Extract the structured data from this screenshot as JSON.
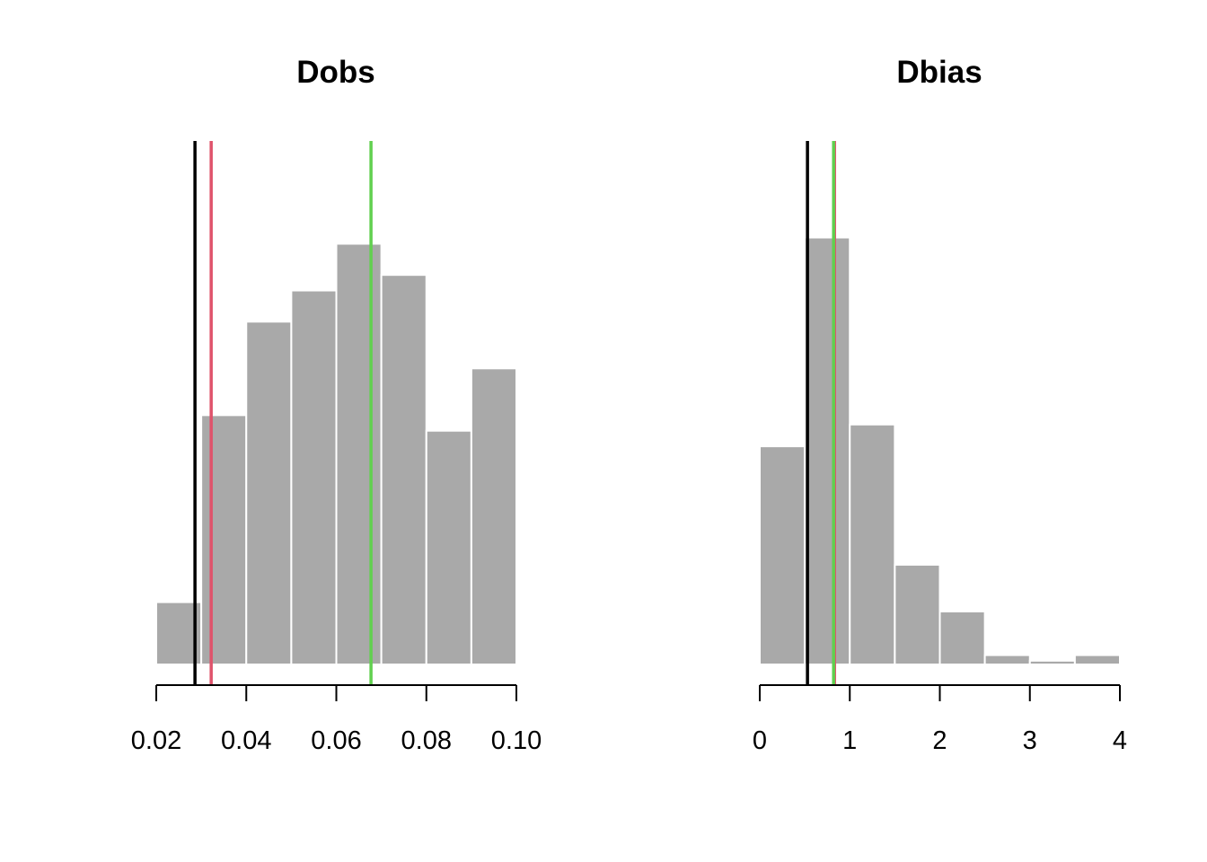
{
  "chart_data": [
    {
      "type": "bar",
      "subtype": "histogram",
      "title": "Dobs",
      "xlabel": "",
      "ylabel": "",
      "xlim": [
        0.02,
        0.1
      ],
      "ylim": [
        0,
        17
      ],
      "bins": [
        {
          "x0": 0.02,
          "x1": 0.03,
          "count": 2
        },
        {
          "x0": 0.03,
          "x1": 0.04,
          "count": 8
        },
        {
          "x0": 0.04,
          "x1": 0.05,
          "count": 11
        },
        {
          "x0": 0.05,
          "x1": 0.06,
          "count": 12
        },
        {
          "x0": 0.06,
          "x1": 0.07,
          "count": 13.5
        },
        {
          "x0": 0.07,
          "x1": 0.08,
          "count": 12.5
        },
        {
          "x0": 0.08,
          "x1": 0.09,
          "count": 7.5
        },
        {
          "x0": 0.09,
          "x1": 0.1,
          "count": 9.5
        }
      ],
      "xticks": [
        {
          "value": 0.02,
          "label": "0.02"
        },
        {
          "value": 0.04,
          "label": "0.04"
        },
        {
          "value": 0.06,
          "label": "0.06"
        },
        {
          "value": 0.08,
          "label": "0.08"
        },
        {
          "value": 0.1,
          "label": "0.10"
        }
      ],
      "vlines": [
        {
          "x": 0.0286,
          "color": "#000000"
        },
        {
          "x": 0.0322,
          "color": "#DF536B"
        },
        {
          "x": 0.0677,
          "color": "#61D04F"
        }
      ],
      "bar_color": "#A9A9A9",
      "grid": false
    },
    {
      "type": "bar",
      "subtype": "histogram",
      "title": "Dbias",
      "xlabel": "",
      "ylabel": "",
      "xlim": [
        0,
        4
      ],
      "ylim": [
        0,
        17
      ],
      "bins": [
        {
          "x0": 0.0,
          "x1": 0.5,
          "count": 7
        },
        {
          "x0": 0.5,
          "x1": 1.0,
          "count": 13.7
        },
        {
          "x0": 1.0,
          "x1": 1.5,
          "count": 7.7
        },
        {
          "x0": 1.5,
          "x1": 2.0,
          "count": 3.2
        },
        {
          "x0": 2.0,
          "x1": 2.5,
          "count": 1.7
        },
        {
          "x0": 2.5,
          "x1": 3.0,
          "count": 0.3
        },
        {
          "x0": 3.0,
          "x1": 3.5,
          "count": 0.12
        },
        {
          "x0": 3.5,
          "x1": 4.0,
          "count": 0.3
        }
      ],
      "xticks": [
        {
          "value": 0,
          "label": "0"
        },
        {
          "value": 1,
          "label": "1"
        },
        {
          "value": 2,
          "label": "2"
        },
        {
          "value": 3,
          "label": "3"
        },
        {
          "value": 4,
          "label": "4"
        }
      ],
      "vlines": [
        {
          "x": 0.53,
          "color": "#000000"
        },
        {
          "x": 0.83,
          "color": "#DF536B"
        },
        {
          "x": 0.82,
          "color": "#61D04F"
        }
      ],
      "bar_color": "#A9A9A9",
      "grid": false
    }
  ]
}
